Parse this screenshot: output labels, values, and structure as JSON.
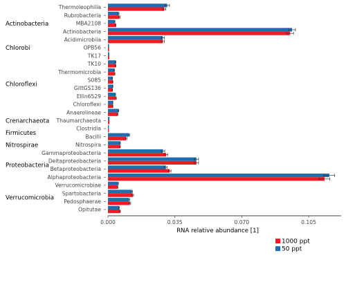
{
  "chart_data": {
    "type": "bar",
    "orientation": "horizontal",
    "xlabel": "RNA relative abundance [1]",
    "xlim": [
      0,
      0.122
    ],
    "xticks": [
      "0.000",
      "0.035",
      "0.070",
      "0.105"
    ],
    "xtick_values": [
      0,
      0.035,
      0.07,
      0.105
    ],
    "grid": false,
    "legend_position": "bottom-right",
    "series": [
      {
        "name": "50 ppt",
        "color": "#1f6fb0"
      },
      {
        "name": "1000 ppt",
        "color": "#ee1c24"
      }
    ],
    "groups": [
      {
        "name": "Actinobacteria",
        "categories": [
          {
            "name": "Thermoleophilia",
            "values": [
              0.031,
              0.0295
            ],
            "errors": [
              0.0012,
              0.0008
            ]
          },
          {
            "name": "Rubrobacteria",
            "values": [
              0.0055,
              0.006
            ],
            "errors": [
              0.0003,
              0.0003
            ]
          },
          {
            "name": "MBA2108",
            "values": [
              0.0035,
              0.004
            ],
            "errors": [
              0.0002,
              0.0002
            ]
          },
          {
            "name": "Actinobacteria",
            "values": [
              0.0963,
              0.0953
            ],
            "errors": [
              0.0018,
              0.0018
            ]
          },
          {
            "name": "Acidimicrobiia",
            "values": [
              0.0287,
              0.0287
            ],
            "errors": [
              0.0008,
              0.0008
            ]
          }
        ]
      },
      {
        "name": "Chlorobi",
        "categories": [
          {
            "name": "OPB56",
            "values": [
              0.0006,
              0.0006
            ],
            "errors": [
              0,
              0
            ]
          }
        ]
      },
      {
        "name": "Chloroflexi",
        "categories": [
          {
            "name": "TK17",
            "values": [
              0.0007,
              0.0007
            ],
            "errors": [
              0,
              0
            ]
          },
          {
            "name": "TK10",
            "values": [
              0.004,
              0.004
            ],
            "errors": [
              0.0002,
              0.0002
            ]
          },
          {
            "name": "Thermomicrobia",
            "values": [
              0.0033,
              0.0035
            ],
            "errors": [
              0.0002,
              0.0002
            ]
          },
          {
            "name": "S085",
            "values": [
              0.0023,
              0.0025
            ],
            "errors": [
              0.0001,
              0.0001
            ]
          },
          {
            "name": "GittGS136",
            "values": [
              0.0025,
              0.0023
            ],
            "errors": [
              0.0001,
              0.0001
            ]
          },
          {
            "name": "Ellin6529",
            "values": [
              0.0038,
              0.0042
            ],
            "errors": [
              0.0002,
              0.0002
            ]
          },
          {
            "name": "Chloroflexi",
            "values": [
              0.0025,
              0.0025
            ],
            "errors": [
              0.0001,
              0.0001
            ]
          },
          {
            "name": "Anaerolineae",
            "values": [
              0.0055,
              0.005
            ],
            "errors": [
              0.0002,
              0.0002
            ]
          }
        ]
      },
      {
        "name": "Crenarchaeota",
        "categories": [
          {
            "name": "Thaumarchaeota",
            "values": [
              0.0008,
              0.0008
            ],
            "errors": [
              0,
              0
            ]
          }
        ]
      },
      {
        "name": "Firmicutes",
        "categories": [
          {
            "name": "Clostridia",
            "values": [
              0.0005,
              0.0005
            ],
            "errors": [
              0,
              0
            ]
          },
          {
            "name": "Bacilli",
            "values": [
              0.011,
              0.0095
            ],
            "errors": [
              0.0004,
              0.0004
            ]
          }
        ]
      },
      {
        "name": "Nitrospirae",
        "categories": [
          {
            "name": "Nitrospira",
            "values": [
              0.0063,
              0.0063
            ],
            "errors": [
              0.0002,
              0.0002
            ]
          }
        ]
      },
      {
        "name": "Proteobacteria",
        "categories": [
          {
            "name": "Gammaproteobacteria",
            "values": [
              0.0288,
              0.0305
            ],
            "errors": [
              0.0009,
              0.0009
            ]
          },
          {
            "name": "Deltaproteobacteria",
            "values": [
              0.0463,
              0.0463
            ],
            "errors": [
              0.0011,
              0.0011
            ]
          },
          {
            "name": "Betaproteobacteria",
            "values": [
              0.0303,
              0.0323
            ],
            "errors": [
              0.0007,
              0.0007
            ]
          },
          {
            "name": "Alphaproteobacteria",
            "values": [
              0.1158,
              0.1133
            ],
            "errors": [
              0.0028,
              0.0028
            ]
          }
        ]
      },
      {
        "name": "Verrucomicrobia",
        "categories": [
          {
            "name": "Verrucomicrobiae",
            "values": [
              0.0053,
              0.005
            ],
            "errors": [
              0.0002,
              0.0002
            ]
          },
          {
            "name": "Spartobacteria",
            "values": [
              0.0125,
              0.013
            ],
            "errors": [
              0.0004,
              0.0004
            ]
          },
          {
            "name": "Pedosphaerae",
            "values": [
              0.011,
              0.0115
            ],
            "errors": [
              0.0004,
              0.0004
            ]
          },
          {
            "name": "Opitutae",
            "values": [
              0.0058,
              0.0063
            ],
            "errors": [
              0.0002,
              0.0002
            ]
          }
        ]
      }
    ]
  }
}
